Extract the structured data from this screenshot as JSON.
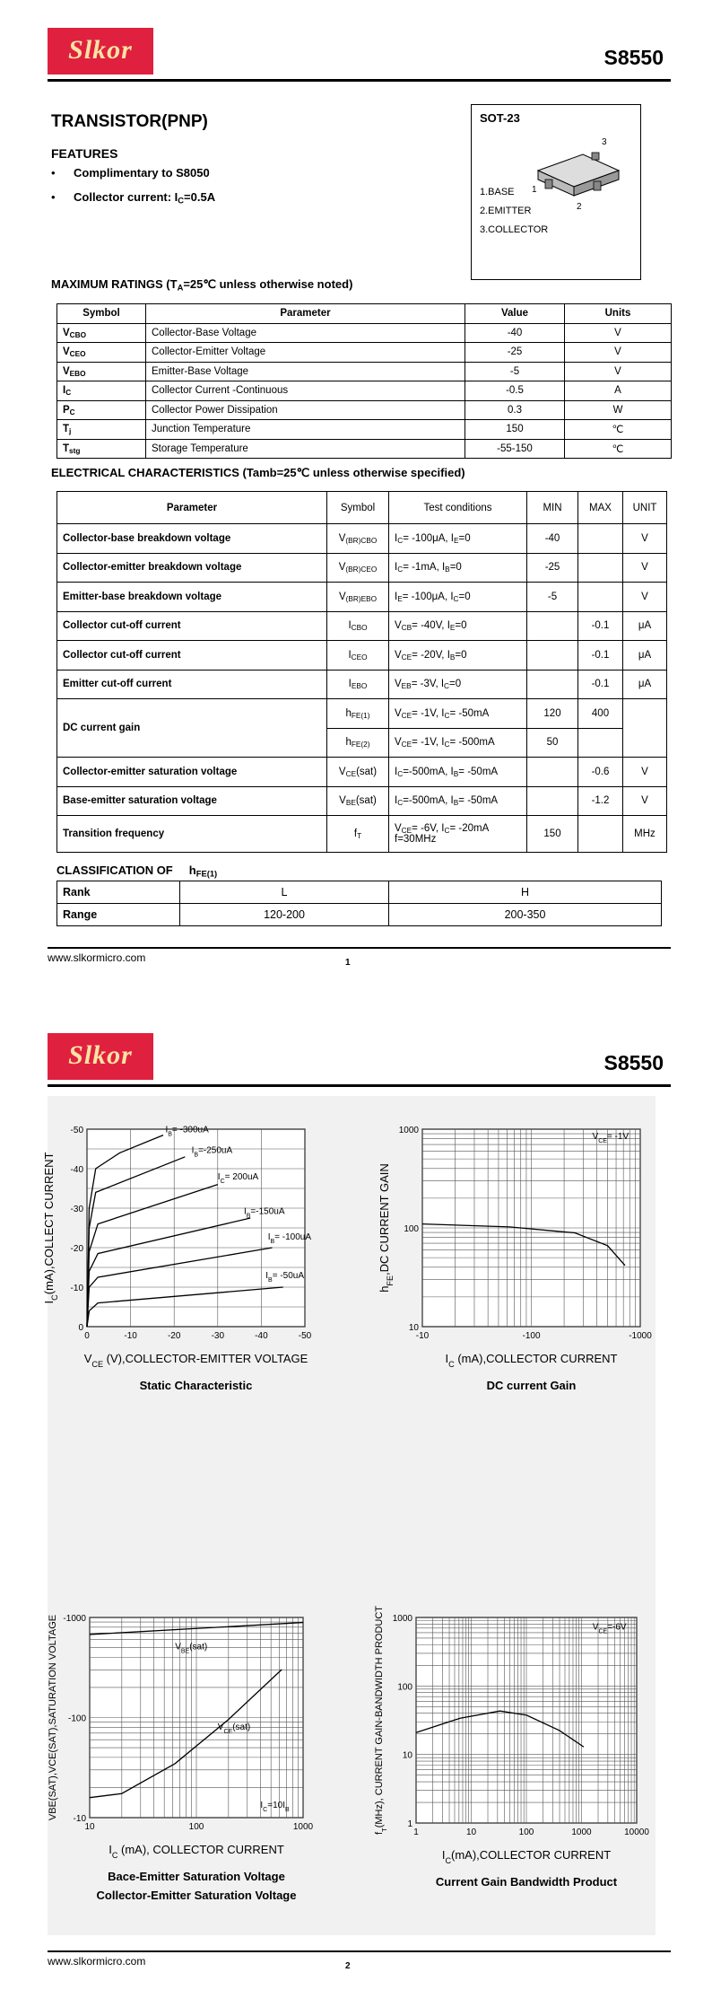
{
  "page1": {
    "logo": "Slkor",
    "part_number": "S8550",
    "device_title": "TRANSISTOR(PNP)",
    "package": {
      "name": "SOT-23",
      "pin_labels": [
        "1.BASE",
        "2.EMITTER",
        "3.COLLECTOR"
      ],
      "pin_numbers": [
        "1",
        "2",
        "3"
      ]
    },
    "features": {
      "heading": "FEATURES",
      "items": [
        [
          "Complimentary to S8050"
        ],
        [
          "Collector current: I",
          {
            "sub": "C"
          },
          "=0.5A"
        ]
      ]
    },
    "max_ratings": {
      "title": [
        "MAXIMUM RATINGS (T",
        {
          "sub": "A"
        },
        "=25℃ unless otherwise noted)"
      ],
      "columns": [
        "Symbol",
        "Parameter",
        "Value",
        "Units"
      ],
      "rows": [
        [
          [
            "V",
            {
              "sub": "CBO"
            }
          ],
          "Collector-Base Voltage",
          "-40",
          "V"
        ],
        [
          [
            "V",
            {
              "sub": "CEO"
            }
          ],
          "Collector-Emitter Voltage",
          "-25",
          "V"
        ],
        [
          [
            "V",
            {
              "sub": "EBO"
            }
          ],
          "Emitter-Base Voltage",
          "-5",
          "V"
        ],
        [
          [
            "I",
            {
              "sub": "C"
            }
          ],
          "Collector Current -Continuous",
          "-0.5",
          "A"
        ],
        [
          [
            "P",
            {
              "sub": "C"
            }
          ],
          "Collector Power Dissipation",
          "0.3",
          "W"
        ],
        [
          [
            "T",
            {
              "sub": "j"
            }
          ],
          "Junction Temperature",
          "150",
          "℃"
        ],
        [
          [
            "T",
            {
              "sub": "stg"
            }
          ],
          "Storage Temperature",
          "-55-150",
          "℃"
        ]
      ]
    },
    "electrical": {
      "title": "ELECTRICAL CHARACTERISTICS (Tamb=25℃ unless otherwise specified)",
      "columns": [
        "Parameter",
        "Symbol",
        "Test      conditions",
        "MIN",
        "MAX",
        "UNIT"
      ],
      "rows": [
        {
          "parameter": "Collector-base breakdown voltage",
          "symbol": [
            "V",
            {
              "sub": "(BR)CBO"
            }
          ],
          "test": [
            "I",
            {
              "sub": "C"
            },
            "= -100μA,   I",
            {
              "sub": "E"
            },
            "=0"
          ],
          "min": "-40",
          "unit": "V"
        },
        {
          "parameter": "Collector-emitter breakdown voltage",
          "symbol": [
            "V",
            {
              "sub": "(BR)CEO"
            }
          ],
          "test": [
            "I",
            {
              "sub": "C"
            },
            "= -1mA, I",
            {
              "sub": "B"
            },
            "=0"
          ],
          "min": "-25",
          "unit": "V"
        },
        {
          "parameter": "Emitter-base breakdown voltage",
          "symbol": [
            "V",
            {
              "sub": "(BR)EBO"
            }
          ],
          "test": [
            "I",
            {
              "sub": "E"
            },
            "= -100μA, I",
            {
              "sub": "C"
            },
            "=0"
          ],
          "min": "-5",
          "unit": "V"
        },
        {
          "parameter": "Collector cut-off current",
          "symbol": [
            "I",
            {
              "sub": "CBO"
            }
          ],
          "test": [
            "V",
            {
              "sub": "CB"
            },
            "= -40V, I",
            {
              "sub": "E"
            },
            "=0"
          ],
          "max": "-0.1",
          "unit": "μA"
        },
        {
          "parameter": "Collector cut-off current",
          "symbol": [
            "I",
            {
              "sub": "CEO"
            }
          ],
          "test": [
            "V",
            {
              "sub": "CE"
            },
            "= -20V, I",
            {
              "sub": "B"
            },
            "=0"
          ],
          "max": "-0.1",
          "unit": "μA"
        },
        {
          "parameter": "Emitter cut-off current",
          "symbol": [
            "I",
            {
              "sub": "EBO"
            }
          ],
          "test": [
            "V",
            {
              "sub": "EB"
            },
            "= -3V, I",
            {
              "sub": "C"
            },
            "=0"
          ],
          "max": "-0.1",
          "unit": "μA"
        },
        {
          "parameter": "DC current gain",
          "sub_rows": [
            {
              "symbol": [
                "h",
                {
                  "sub": "FE(1)"
                }
              ],
              "test": [
                "V",
                {
                  "sub": "CE"
                },
                "= -1V, I",
                {
                  "sub": "C"
                },
                "= -50mA"
              ],
              "min": "120",
              "max": "400"
            },
            {
              "symbol": [
                "h",
                {
                  "sub": "FE(2)"
                }
              ],
              "test": [
                "V",
                {
                  "sub": "CE"
                },
                "= -1V, I",
                {
                  "sub": "C"
                },
                "= -500mA"
              ],
              "min": "50"
            }
          ]
        },
        {
          "parameter": "Collector-emitter saturation voltage",
          "symbol": [
            "V",
            {
              "sub": "CE"
            },
            "(sat)"
          ],
          "test": [
            "I",
            {
              "sub": "C"
            },
            "=-500mA, I",
            {
              "sub": "B"
            },
            "= -50mA"
          ],
          "max": "-0.6",
          "unit": "V"
        },
        {
          "parameter": "Base-emitter saturation voltage",
          "symbol": [
            "V",
            {
              "sub": "BE"
            },
            "(sat)"
          ],
          "test": [
            "I",
            {
              "sub": "C"
            },
            "=-500mA, I",
            {
              "sub": "B"
            },
            "= -50mA"
          ],
          "max": "-1.2",
          "unit": "V"
        },
        {
          "parameter": "Transition frequency",
          "symbol": [
            "f",
            {
              "sub": "T"
            }
          ],
          "test_lines": [
            [
              "V",
              {
                "sub": "CE"
              },
              "= -6V, I",
              {
                "sub": "C"
              },
              "= -20mA"
            ],
            [
              "f=30MHz"
            ]
          ],
          "min": "150",
          "unit": "MHz"
        }
      ]
    },
    "classification": {
      "title": [
        "CLASSIFICATION OF     h",
        {
          "sub": "FE(1)"
        }
      ],
      "rows": [
        [
          "Rank",
          "L",
          "H"
        ],
        [
          "Range",
          "120-200",
          "200-350"
        ]
      ]
    },
    "footer": {
      "url": "www.slkormicro.com",
      "page": "1"
    }
  },
  "page2": {
    "logo": "Slkor",
    "part_number": "S8550",
    "charts": [
      {
        "caption": [
          "Static Characteristic"
        ],
        "x_label": [
          "V",
          {
            "sub": "CE"
          },
          " (V),COLLECTOR-EMITTER VOLTAGE"
        ],
        "y_label": [
          "I",
          {
            "sub": "C"
          },
          "(mA),COLLECT  CURRENT"
        ],
        "x_scale": "linear",
        "y_scale": "linear",
        "x_ticks": [
          "0",
          "-10",
          "-20",
          "-30",
          "-40",
          "-50"
        ],
        "y_ticks": [
          "0",
          "-10",
          "-20",
          "-30",
          "-40",
          "-50"
        ],
        "curve_labels": [
          [
            "I",
            {
              "sub": "B"
            },
            "= -300uA"
          ],
          [
            "I",
            {
              "sub": "B"
            },
            "=-250uA"
          ],
          [
            "I",
            {
              "sub": "C"
            },
            "= 200uA"
          ],
          [
            "I",
            {
              "sub": "B"
            },
            "=-150uA"
          ],
          [
            "I",
            {
              "sub": "B"
            },
            "= -100uA"
          ],
          [
            "I",
            {
              "sub": "B"
            },
            "= -50uA"
          ]
        ]
      },
      {
        "caption": [
          "DC current Gain"
        ],
        "x_label": [
          "I",
          {
            "sub": "C"
          },
          " (mA),COLLECTOR CURRENT"
        ],
        "y_label": [
          "h",
          {
            "sub": "FE"
          },
          ",DC CURRENT GAIN"
        ],
        "x_scale": "log",
        "y_scale": "log",
        "x_ticks": [
          "-10",
          "-100",
          "-1000"
        ],
        "y_ticks": [
          "10",
          "100",
          "1000"
        ],
        "curve_labels": [
          [
            "V",
            {
              "sub": "CE"
            },
            "= -1V"
          ]
        ]
      },
      {
        "caption": [
          "Bace-Emitter Saturation Voltage",
          "Collector-Emitter Saturation Voltage"
        ],
        "x_label": [
          "I",
          {
            "sub": "C"
          },
          " (mA), COLLECTOR CURRENT"
        ],
        "y_label": "VBE(SAT),VCE(SAT),SATURATION VOLTAGE",
        "x_scale": "log",
        "y_scale": "log",
        "x_ticks": [
          "10",
          "100",
          "1000"
        ],
        "y_ticks": [
          "-10",
          "-100",
          "-1000"
        ],
        "curve_labels": [
          [
            "V",
            {
              "sub": "BE"
            },
            "(sat)"
          ],
          [
            "V",
            {
              "sub": "CE"
            },
            "(sat)"
          ],
          [
            "I",
            {
              "sub": "C"
            },
            "=10I",
            {
              "sub": "B"
            }
          ]
        ]
      },
      {
        "caption": [
          "Current Gain Bandwidth Product"
        ],
        "x_label": [
          "I",
          {
            "sub": "C"
          },
          "(mA),COLLECTOR CURRENT"
        ],
        "y_label": [
          "f",
          {
            "sub": "T"
          },
          "(MHz), CURRENT GAIN-BANDWIDTH PRODUCT"
        ],
        "x_scale": "log",
        "y_scale": "log",
        "x_ticks": [
          "1",
          "10",
          "100",
          "1000",
          "10000"
        ],
        "y_ticks": [
          "1",
          "10",
          "100",
          "1000"
        ],
        "curve_labels": [
          [
            "V",
            {
              "sub": "CE"
            },
            "=-6V"
          ]
        ]
      }
    ],
    "footer": {
      "url": "www.slkormicro.com",
      "page": "2"
    }
  }
}
